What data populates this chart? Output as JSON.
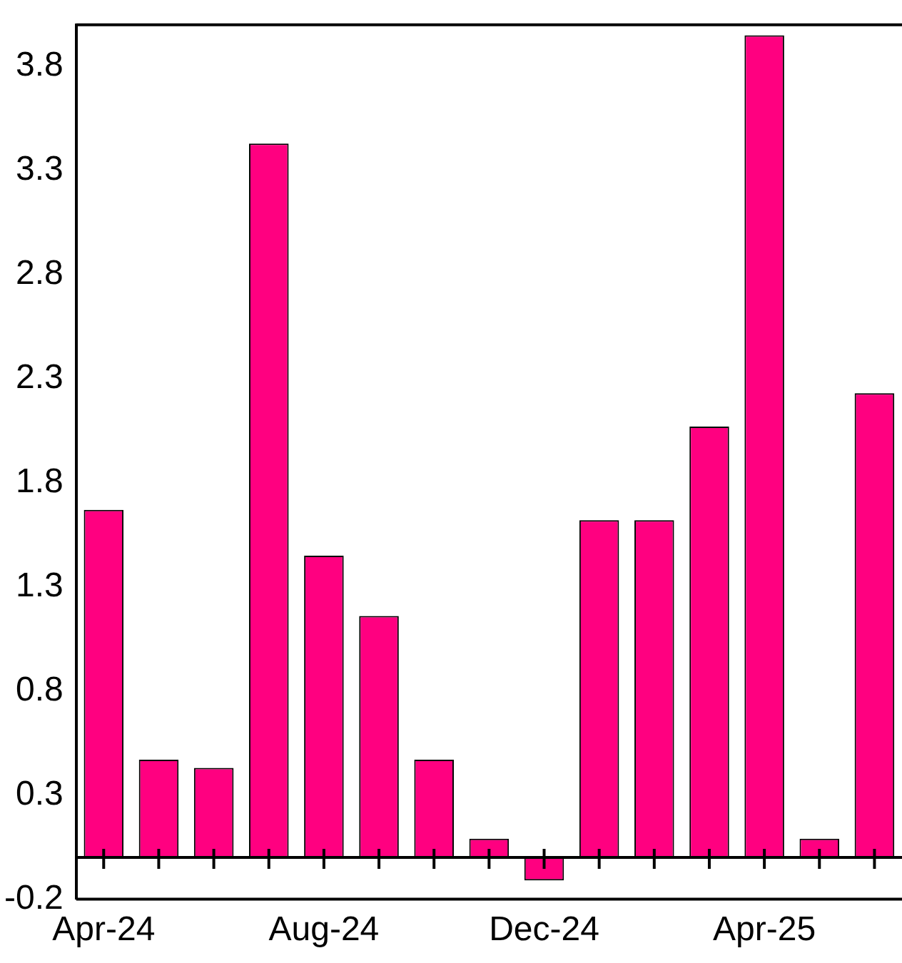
{
  "chart_data": {
    "type": "bar",
    "categories": [
      "Apr-24",
      null,
      null,
      null,
      "Aug-24",
      null,
      null,
      null,
      "Dec-24",
      null,
      null,
      null,
      "Apr-25",
      null,
      null
    ],
    "values": [
      1.67,
      0.47,
      0.43,
      3.43,
      1.45,
      1.16,
      0.47,
      0.09,
      -0.11,
      1.62,
      1.62,
      2.07,
      3.95,
      0.09,
      2.23
    ],
    "color": "#ff0080",
    "ylim": [
      -0.2,
      4.0
    ],
    "yticks": [
      -0.2,
      0.3,
      0.8,
      1.3,
      1.8,
      2.3,
      2.8,
      3.3,
      3.8
    ],
    "grid": false,
    "legend": false
  }
}
